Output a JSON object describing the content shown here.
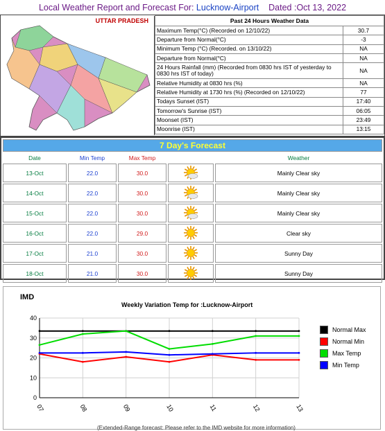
{
  "header": {
    "prefix": "Local Weather Report and Forecast For:",
    "location": "Lucknow-Airport",
    "dated": "Dated :Oct 13, 2022"
  },
  "map": {
    "title": "UTTAR PRADESH"
  },
  "past24": {
    "heading": "Past 24 Hours Weather Data",
    "rows": [
      {
        "label": "Maximum Temp(°C) (Recorded on 12/10/22)",
        "value": "30.7"
      },
      {
        "label": "Departure from Normal(°C)",
        "value": "-3"
      },
      {
        "label": "Minimum Temp (°C) (Recorded. on 13/10/22)",
        "value": "NA"
      },
      {
        "label": "Departure from Normal(°C)",
        "value": "NA"
      },
      {
        "label": "24 Hours Rainfall (mm) (Recorded from 0830 hrs IST of yesterday to 0830 hrs IST of today)",
        "value": "NA"
      },
      {
        "label": "Relative Humidity at 0830 hrs (%)",
        "value": "NA"
      },
      {
        "label": "Relative Humidity at 1730 hrs (%) (Recorded on 12/10/22)",
        "value": "77"
      },
      {
        "label": "Todays Sunset (IST)",
        "value": "17:40"
      },
      {
        "label": "Tomorrow's Sunrise (IST)",
        "value": "06:05"
      },
      {
        "label": "Moonset (IST)",
        "value": "23:49"
      },
      {
        "label": "Moonrise (IST)",
        "value": "13:15"
      }
    ]
  },
  "forecast": {
    "title": "7 Day's Forecast",
    "columns": {
      "date": "Date",
      "min": "Min Temp",
      "max": "Max Temp",
      "weather": "Weather"
    },
    "colors": {
      "date": "#007a3d",
      "min": "#1a3fd0",
      "max": "#d01a1a",
      "weather": "#007a3d"
    },
    "rows": [
      {
        "date": "13-Oct",
        "min": "22.0",
        "max": "30.0",
        "icon": "partly-sunny-icon",
        "weather": "Mainly Clear sky"
      },
      {
        "date": "14-Oct",
        "min": "22.0",
        "max": "30.0",
        "icon": "partly-sunny-icon",
        "weather": "Mainly Clear sky"
      },
      {
        "date": "15-Oct",
        "min": "22.0",
        "max": "30.0",
        "icon": "partly-sunny-icon",
        "weather": "Mainly Clear sky"
      },
      {
        "date": "16-Oct",
        "min": "22.0",
        "max": "29.0",
        "icon": "sun-icon",
        "weather": "Clear sky"
      },
      {
        "date": "17-Oct",
        "min": "21.0",
        "max": "30.0",
        "icon": "sun-icon",
        "weather": "Sunny Day"
      },
      {
        "date": "18-Oct",
        "min": "21.0",
        "max": "30.0",
        "icon": "sun-icon",
        "weather": "Sunny Day"
      }
    ]
  },
  "graph": {
    "org": "IMD",
    "footer": "(Extended-Range forecast: Please refer to the IMD website for more information)"
  },
  "chart_data": {
    "type": "line",
    "title": "Weekly Variation Temp for :Lucknow-Airport",
    "xlabel": "",
    "ylabel": "",
    "x": [
      "07",
      "08",
      "09",
      "10",
      "11",
      "12",
      "13"
    ],
    "ylim": [
      0,
      40
    ],
    "yticks": [
      0,
      10,
      20,
      30,
      40
    ],
    "grid": true,
    "legend": "right",
    "series": [
      {
        "name": "Normal Max",
        "color": "#000000",
        "values": [
          33.5,
          33.5,
          33.5,
          33.5,
          33.5,
          33.5,
          33.5
        ]
      },
      {
        "name": "Normal Min",
        "color": "#ff0000",
        "values": [
          22,
          18,
          20.5,
          18,
          21.5,
          19,
          19
        ]
      },
      {
        "name": "Max Temp",
        "color": "#00dd00",
        "values": [
          26.5,
          32,
          33.5,
          24.5,
          27,
          31,
          31
        ]
      },
      {
        "name": "Min Temp",
        "color": "#0000ff",
        "values": [
          22.5,
          22.5,
          23,
          21.5,
          22,
          22.5,
          22.5
        ]
      }
    ]
  }
}
